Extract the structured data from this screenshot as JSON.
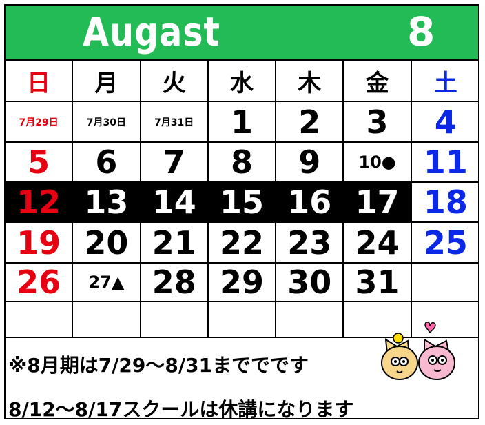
{
  "header": {
    "title": "Augast",
    "month": "8"
  },
  "weekdays": [
    "日",
    "月",
    "火",
    "水",
    "木",
    "金",
    "土"
  ],
  "weeks": [
    [
      "7月29日",
      "7月30日",
      "7月31日",
      "1",
      "2",
      "3",
      "4"
    ],
    [
      "5",
      "6",
      "7",
      "8",
      "9",
      "10●",
      "11"
    ],
    [
      "12",
      "13",
      "14",
      "15",
      "16",
      "17",
      "18"
    ],
    [
      "19",
      "20",
      "21",
      "22",
      "23",
      "24",
      "25"
    ],
    [
      "26",
      "27▲",
      "28",
      "29",
      "30",
      "31"
    ]
  ],
  "notes": [
    "※8月期は7/29～8/31まででです",
    "8/12～8/17スクールは休講になります"
  ]
}
